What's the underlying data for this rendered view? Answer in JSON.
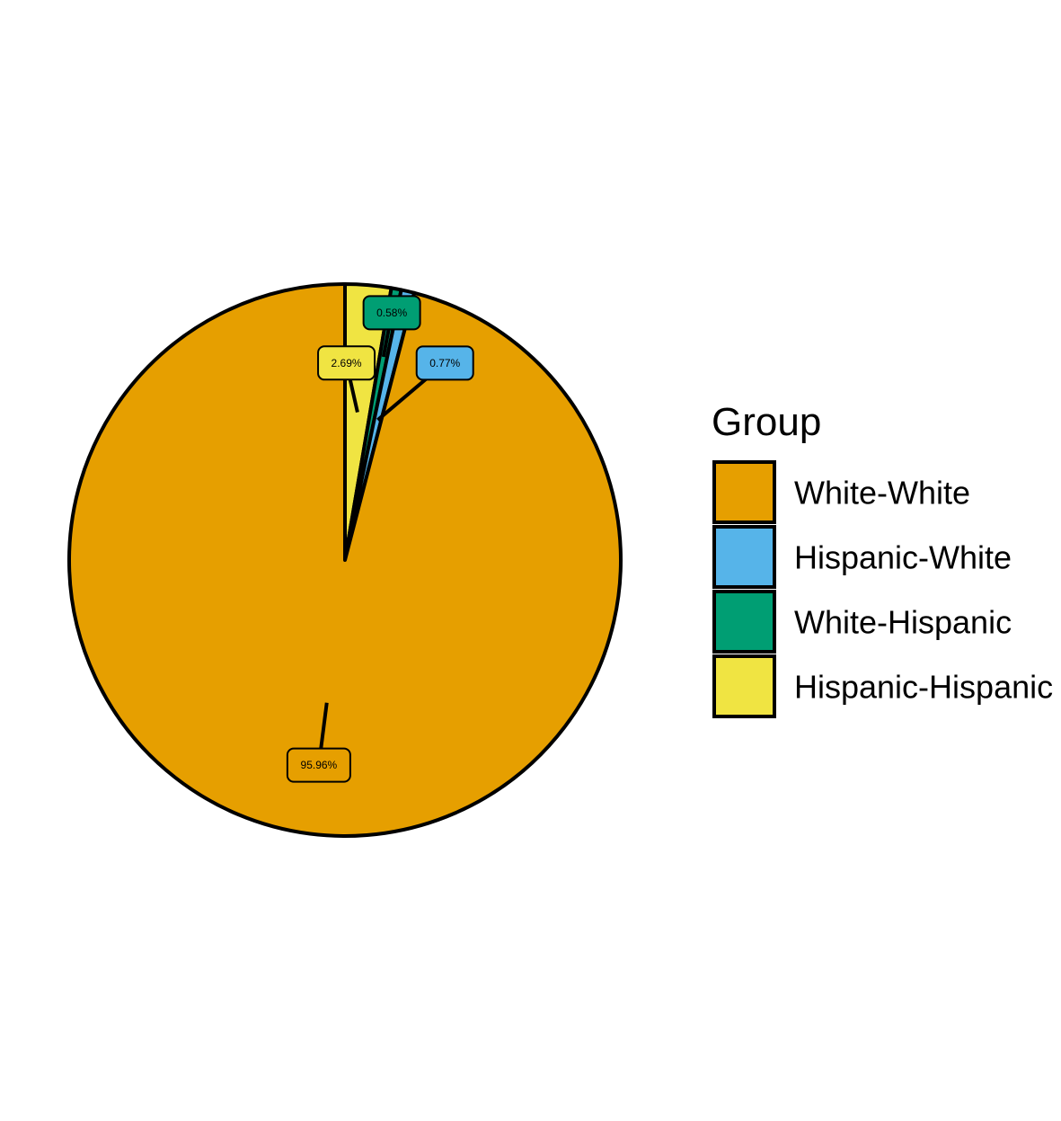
{
  "chart_data": {
    "type": "pie",
    "title": "",
    "legend_title": "Group",
    "legend_position": "right",
    "slice_order": "clockwise from top, starting with White-White counter-clockwise",
    "slices": [
      {
        "name": "White-White",
        "value": 95.96,
        "label": "95.96%",
        "color": "#E69F00"
      },
      {
        "name": "Hispanic-White",
        "value": 0.77,
        "label": "0.77%",
        "color": "#56B4E9"
      },
      {
        "name": "White-Hispanic",
        "value": 0.58,
        "label": "0.58%",
        "color": "#009E73"
      },
      {
        "name": "Hispanic-Hispanic",
        "value": 2.69,
        "label": "2.69%",
        "color": "#F0E442"
      }
    ]
  }
}
